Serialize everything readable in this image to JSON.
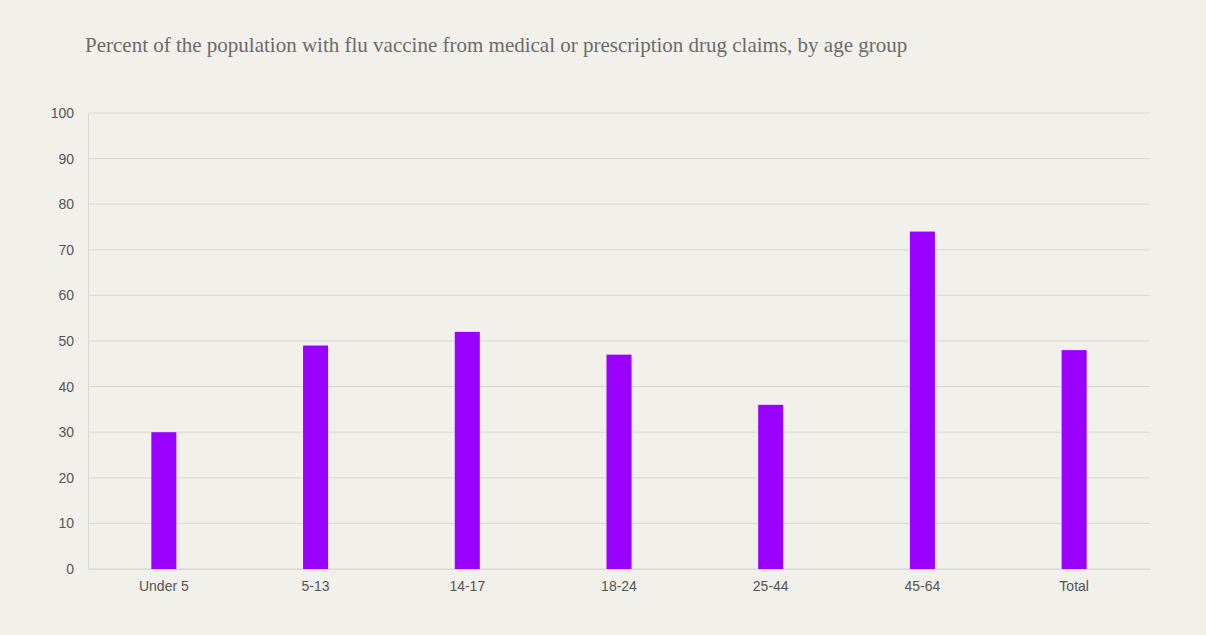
{
  "chart_data": {
    "type": "bar",
    "title": "Percent of the population with flu vaccine from medical or prescription drug claims, by age group",
    "categories": [
      "Under 5",
      "5-13",
      "14-17",
      "18-24",
      "25-44",
      "45-64",
      "Total"
    ],
    "values": [
      30,
      49,
      52,
      47,
      36,
      74,
      48
    ],
    "color": "#9900ff",
    "ylim": [
      0,
      100
    ],
    "yticks": [
      0,
      10,
      20,
      30,
      40,
      50,
      60,
      70,
      80,
      90,
      100
    ],
    "grid": true
  }
}
